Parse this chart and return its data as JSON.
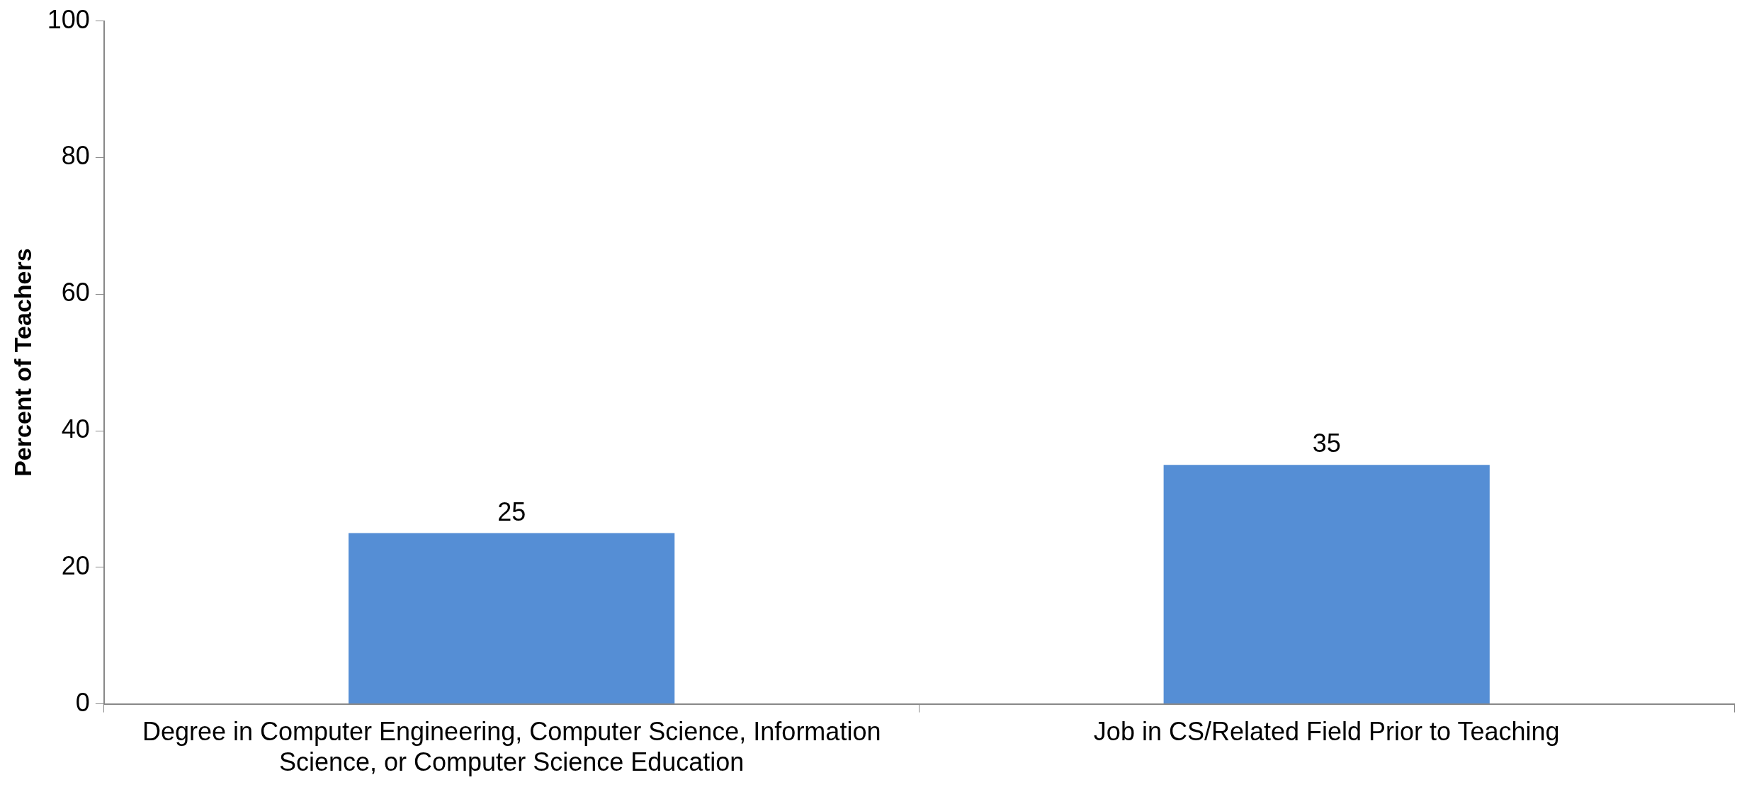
{
  "chart_data": {
    "type": "bar",
    "ylabel": "Percent of Teachers",
    "categories": [
      "Degree in Computer Engineering, Computer Science, Information Science, or Computer Science Education",
      "Job in CS/Related Field Prior to Teaching"
    ],
    "values": [
      25,
      35
    ],
    "color": "#558ed5",
    "ylim": [
      0,
      100
    ],
    "yticks": [
      0,
      20,
      40,
      60,
      80,
      100
    ],
    "grid": false,
    "legend": false,
    "data_labels": true
  }
}
